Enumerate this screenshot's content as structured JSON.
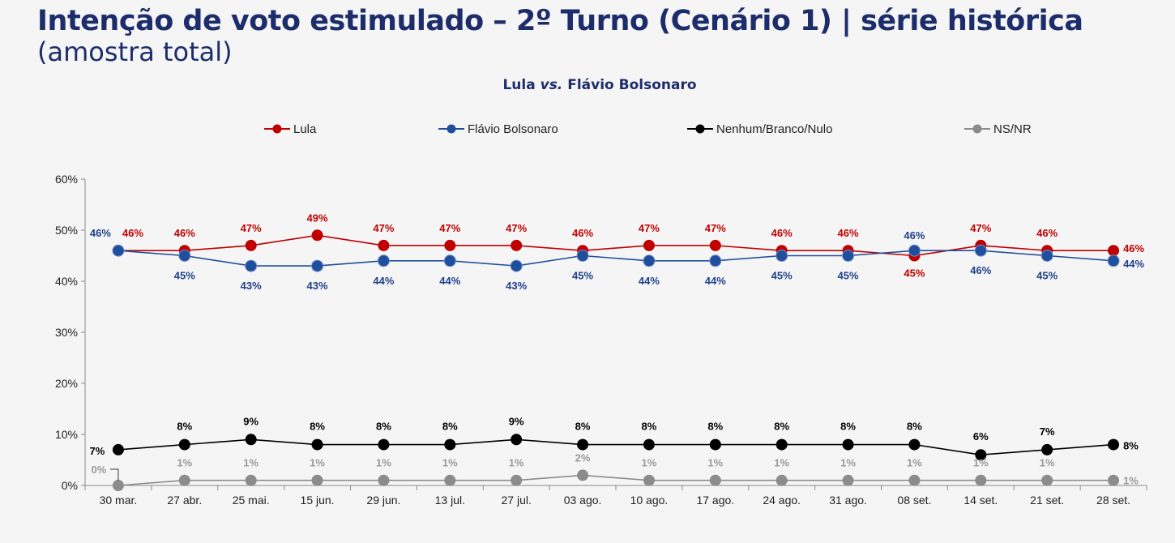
{
  "page": {
    "title": "Intenção de voto estimulado – 2º Turno (Cenário 1) | série histórica",
    "subtitle": "(amostra total)"
  },
  "chart_data": {
    "type": "line",
    "title_part1": "Lula ",
    "title_part2": "vs.",
    "title_part3": " Flávio Bolsonaro",
    "xlabel": "",
    "ylabel": "",
    "ylim": [
      0,
      60
    ],
    "yticks": [
      "0%",
      "10%",
      "20%",
      "30%",
      "40%",
      "50%",
      "60%"
    ],
    "grid": false,
    "legend_position": "top",
    "categories": [
      "30 mar.",
      "27 abr.",
      "25 mai.",
      "15 jun.",
      "29 jun.",
      "13 jul.",
      "27 jul.",
      "03 ago.",
      "10 ago.",
      "17 ago.",
      "24 ago.",
      "31 ago.",
      "08 set.",
      "14 set.",
      "21 set.",
      "28 set."
    ],
    "series": [
      {
        "name": "Lula",
        "color": "#c00000",
        "values": [
          46,
          46,
          47,
          49,
          47,
          47,
          47,
          46,
          47,
          47,
          46,
          46,
          45,
          47,
          46,
          46
        ],
        "labels": [
          "46%",
          "46%",
          "47%",
          "49%",
          "47%",
          "47%",
          "47%",
          "46%",
          "47%",
          "47%",
          "46%",
          "46%",
          "45%",
          "47%",
          "46%",
          "46%"
        ]
      },
      {
        "name": "Flávio Bolsonaro",
        "color": "#1f4e9c",
        "values": [
          46,
          45,
          43,
          43,
          44,
          44,
          43,
          45,
          44,
          44,
          45,
          45,
          46,
          46,
          45,
          44
        ],
        "labels": [
          "46%",
          "45%",
          "43%",
          "43%",
          "44%",
          "44%",
          "43%",
          "45%",
          "44%",
          "44%",
          "45%",
          "45%",
          "46%",
          "46%",
          "45%",
          "44%"
        ]
      },
      {
        "name": "Nenhum/Branco/Nulo",
        "color": "#000000",
        "values": [
          7,
          8,
          9,
          8,
          8,
          8,
          9,
          8,
          8,
          8,
          8,
          8,
          8,
          6,
          7,
          8
        ],
        "labels": [
          "7%",
          "8%",
          "9%",
          "8%",
          "8%",
          "8%",
          "9%",
          "8%",
          "8%",
          "8%",
          "8%",
          "8%",
          "8%",
          "6%",
          "7%",
          "8%"
        ]
      },
      {
        "name": "NS/NR",
        "color": "#8c8c8c",
        "values": [
          0,
          1,
          1,
          1,
          1,
          1,
          1,
          2,
          1,
          1,
          1,
          1,
          1,
          1,
          1,
          1
        ],
        "labels": [
          "0%",
          "1%",
          "1%",
          "1%",
          "1%",
          "1%",
          "1%",
          "2%",
          "1%",
          "1%",
          "1%",
          "1%",
          "1%",
          "1%",
          "1%",
          "1%"
        ]
      }
    ]
  }
}
